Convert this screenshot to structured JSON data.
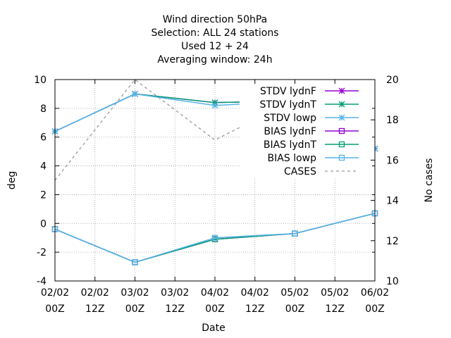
{
  "chart_data": {
    "type": "line",
    "title_lines": [
      "Wind direction 50hPa",
      "Selection: ALL      24 stations",
      "Used  12 + 24",
      "Averaging window: 24h"
    ],
    "xlabel": "Date",
    "ylabel": "deg",
    "y2label": "No cases",
    "ylim": [
      -4,
      10
    ],
    "y2lim": [
      10,
      20
    ],
    "yticks": [
      "-4",
      "-2",
      "0",
      "2",
      "4",
      "6",
      "8",
      "10"
    ],
    "y2ticks": [
      "10",
      "12",
      "14",
      "16",
      "18",
      "20"
    ],
    "x_ticks": [
      {
        "x": 0,
        "line1": "02/02",
        "line2": "00Z"
      },
      {
        "x": 12,
        "line1": "02/02",
        "line2": "12Z"
      },
      {
        "x": 24,
        "line1": "03/02",
        "line2": "00Z"
      },
      {
        "x": 36,
        "line1": "03/02",
        "line2": "12Z"
      },
      {
        "x": 48,
        "line1": "04/02",
        "line2": "00Z"
      },
      {
        "x": 60,
        "line1": "04/02",
        "line2": "12Z"
      },
      {
        "x": 72,
        "line1": "05/02",
        "line2": "00Z"
      },
      {
        "x": 84,
        "line1": "05/02",
        "line2": "12Z"
      },
      {
        "x": 96,
        "line1": "06/02",
        "line2": "00Z"
      }
    ],
    "xlim": [
      0,
      96
    ],
    "grid": true,
    "legend_position": "top-right",
    "series": [
      {
        "name": "STDV lydnF",
        "color": "#9400d3",
        "marker": "star",
        "axis": "y1",
        "dash": false,
        "x": [
          0,
          24,
          48,
          72,
          96
        ],
        "values": [
          6.4,
          9.0,
          8.4,
          8.5,
          5.2
        ]
      },
      {
        "name": "STDV lydnT",
        "color": "#009e73",
        "marker": "star",
        "axis": "y1",
        "dash": false,
        "x": [
          0,
          24,
          48,
          72,
          96
        ],
        "values": [
          6.4,
          9.0,
          8.4,
          8.5,
          5.2
        ]
      },
      {
        "name": "STDV lowp",
        "color": "#56b4e9",
        "marker": "star",
        "axis": "y1",
        "dash": false,
        "x": [
          0,
          24,
          48,
          72,
          96
        ],
        "values": [
          6.4,
          9.0,
          8.2,
          8.5,
          5.2
        ]
      },
      {
        "name": "BIAS lydnF",
        "color": "#9400d3",
        "marker": "square",
        "axis": "y1",
        "dash": false,
        "x": [
          0,
          24,
          48,
          72,
          96
        ],
        "values": [
          -0.4,
          -2.7,
          -1.1,
          -0.7,
          0.7
        ]
      },
      {
        "name": "BIAS lydnT",
        "color": "#009e73",
        "marker": "square",
        "axis": "y1",
        "dash": false,
        "x": [
          0,
          24,
          48,
          72,
          96
        ],
        "values": [
          -0.4,
          -2.7,
          -1.1,
          -0.7,
          0.7
        ]
      },
      {
        "name": "BIAS lowp",
        "color": "#56b4e9",
        "marker": "square",
        "axis": "y1",
        "dash": false,
        "x": [
          0,
          24,
          48,
          72,
          96
        ],
        "values": [
          -0.4,
          -2.7,
          -1.0,
          -0.7,
          0.7
        ]
      },
      {
        "name": "CASES",
        "color": "#999999",
        "marker": "none",
        "axis": "y2",
        "dash": true,
        "x": [
          0,
          24,
          48,
          72,
          96
        ],
        "values": [
          15,
          20,
          17,
          19,
          19
        ]
      }
    ]
  }
}
